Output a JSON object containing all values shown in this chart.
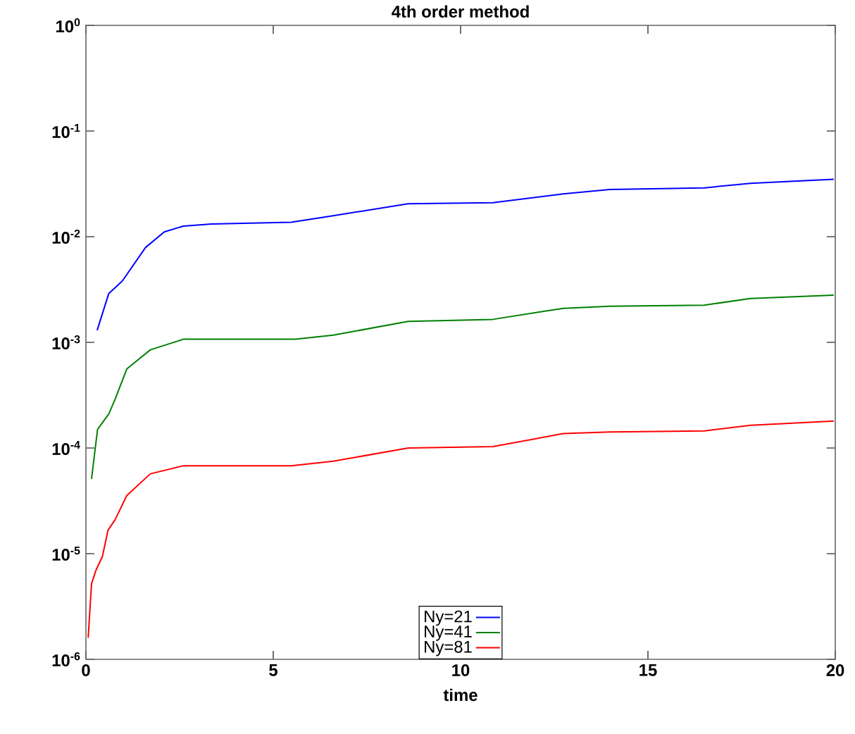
{
  "chart_data": {
    "type": "line",
    "title": "4th order method",
    "xlabel": "time",
    "log": "y",
    "xlim": [
      0,
      20
    ],
    "xticks": [
      0,
      5,
      10,
      15,
      20
    ],
    "ylim": [
      1e-06,
      1
    ],
    "yticks": [
      {
        "value": 1e-06,
        "label": "10$^{-6}$"
      },
      {
        "value": 1e-05,
        "label": "10$^{-5}$"
      },
      {
        "value": 0.0001,
        "label": "10$^{-4}$"
      },
      {
        "value": 0.001,
        "label": "10$^{-3}$"
      },
      {
        "value": 0.01,
        "label": "10$^{-2}$"
      },
      {
        "value": 0.1,
        "label": "10$^{-1}$"
      },
      {
        "value": 1,
        "label": "10$^{0}$"
      }
    ],
    "grid": false,
    "legend": "bottom",
    "line_style": "solid",
    "marker": "none",
    "series": [
      {
        "name": "Ny=21",
        "color": "#0000ff",
        "x": [
          0.3,
          0.61,
          0.97,
          1.59,
          2.09,
          2.6,
          3.35,
          5.48,
          6.6,
          8.6,
          10.86,
          12.74,
          13.98,
          16.5,
          17.74,
          19.96
        ],
        "values": [
          0.0013,
          0.0029,
          0.0038,
          0.0079,
          0.0111,
          0.0126,
          0.0132,
          0.0137,
          0.0158,
          0.0205,
          0.021,
          0.0254,
          0.028,
          0.029,
          0.032,
          0.035
        ]
      },
      {
        "name": "Ny=41",
        "color": "#008000",
        "x": [
          0.15,
          0.31,
          0.61,
          0.78,
          1.09,
          1.72,
          2.6,
          5.6,
          6.6,
          8.6,
          10.86,
          12.74,
          13.98,
          16.5,
          17.74,
          19.96
        ],
        "values": [
          5.1e-05,
          0.00015,
          0.00021,
          0.00029,
          0.00056,
          0.00085,
          0.00107,
          0.00107,
          0.00117,
          0.00158,
          0.00165,
          0.0021,
          0.0022,
          0.00225,
          0.0026,
          0.0028
        ]
      },
      {
        "name": "Ny=81",
        "color": "#ff0000",
        "x": [
          0.06,
          0.15,
          0.27,
          0.44,
          0.59,
          0.78,
          1.09,
          1.72,
          2.6,
          5.48,
          6.6,
          8.6,
          10.86,
          12.74,
          13.98,
          16.5,
          17.74,
          19.96
        ],
        "values": [
          1.6e-06,
          5.2e-06,
          7e-06,
          9.4e-06,
          1.67e-05,
          2.1e-05,
          3.55e-05,
          5.7e-05,
          6.8e-05,
          6.8e-05,
          7.5e-05,
          0.0001,
          0.000103,
          0.000137,
          0.000142,
          0.000145,
          0.000164,
          0.00018
        ]
      }
    ]
  }
}
